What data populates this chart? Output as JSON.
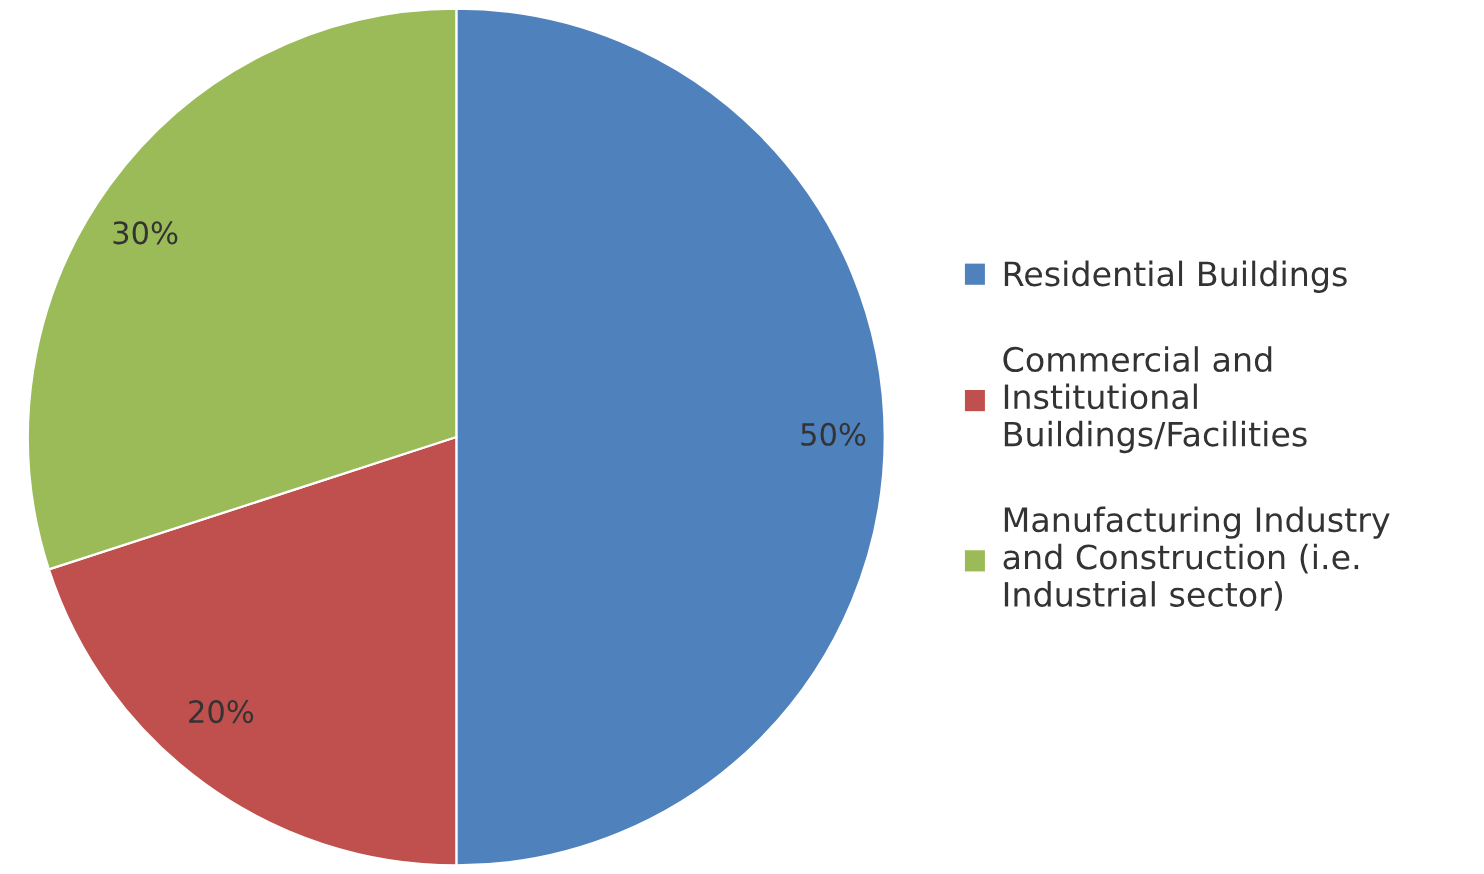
{
  "chart_data": {
    "type": "pie",
    "categories": [
      "Residential Buildings",
      "Commercial and\nInstitutional\nBuildings/Facilities",
      "Manufacturing Industry\nand Construction (i.e.\nIndustrial sector)"
    ],
    "values": [
      50,
      20,
      30
    ],
    "value_labels": [
      "50%",
      "20%",
      "30%"
    ],
    "colors": [
      "#4f81bd",
      "#c0504d",
      "#9bbb59"
    ],
    "legend": "right"
  }
}
